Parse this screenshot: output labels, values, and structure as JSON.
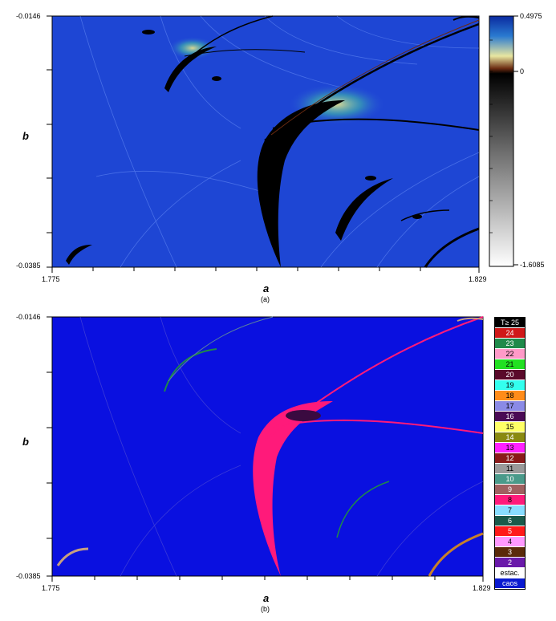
{
  "panel_a": {
    "y_top": "-0.0146",
    "y_bottom": "-0.0385",
    "x_left": "1.775",
    "x_right": "1.829",
    "xlabel": "a",
    "ylabel": "b",
    "caption": "(a)",
    "colorbar": {
      "max": "0.4975",
      "mid": "0",
      "min": "-1.6085"
    }
  },
  "panel_b": {
    "y_top": "-0.0146",
    "y_bottom": "-0.0385",
    "x_left": "1.775",
    "x_right": "1.829",
    "xlabel": "a",
    "ylabel": "b",
    "caption": "(b)",
    "legend": [
      {
        "label": "T≥ 25",
        "color": "#000000",
        "text": "#ffffff"
      },
      {
        "label": "24",
        "color": "#d01818",
        "text": "#ffffff"
      },
      {
        "label": "23",
        "color": "#1f8a4a",
        "text": "#ffffff"
      },
      {
        "label": "22",
        "color": "#ff9ac8",
        "text": "#000000"
      },
      {
        "label": "21",
        "color": "#22e022",
        "text": "#000000"
      },
      {
        "label": "20",
        "color": "#5a0a2a",
        "text": "#ffffff"
      },
      {
        "label": "19",
        "color": "#33ffee",
        "text": "#000000"
      },
      {
        "label": "18",
        "color": "#ff8c1a",
        "text": "#000000"
      },
      {
        "label": "17",
        "color": "#8a8ae6",
        "text": "#000000"
      },
      {
        "label": "16",
        "color": "#4a0a55",
        "text": "#ffffff"
      },
      {
        "label": "15",
        "color": "#ffff66",
        "text": "#000000"
      },
      {
        "label": "14",
        "color": "#8a8a10",
        "text": "#ffffff"
      },
      {
        "label": "13",
        "color": "#ff22ff",
        "text": "#000000"
      },
      {
        "label": "12",
        "color": "#8a1a1a",
        "text": "#ffffff"
      },
      {
        "label": "11",
        "color": "#9a9a9a",
        "text": "#000000"
      },
      {
        "label": "10",
        "color": "#4a9a8a",
        "text": "#ffffff"
      },
      {
        "label": "9",
        "color": "#a06060",
        "text": "#ffffff"
      },
      {
        "label": "8",
        "color": "#ff1a7a",
        "text": "#000000"
      },
      {
        "label": "7",
        "color": "#88ddff",
        "text": "#000000"
      },
      {
        "label": "6",
        "color": "#1a5a4a",
        "text": "#ffffff"
      },
      {
        "label": "5",
        "color": "#ff1a1a",
        "text": "#ffffff"
      },
      {
        "label": "4",
        "color": "#ff99ff",
        "text": "#000000"
      },
      {
        "label": "3",
        "color": "#5a2a0a",
        "text": "#ffffff"
      },
      {
        "label": "2",
        "color": "#6a1aaa",
        "text": "#ffffff"
      },
      {
        "label": "estac.",
        "color": "#ffffff",
        "text": "#000000"
      },
      {
        "label": "caos",
        "color": "#0a1ad0",
        "text": "#ffffff"
      }
    ]
  }
}
